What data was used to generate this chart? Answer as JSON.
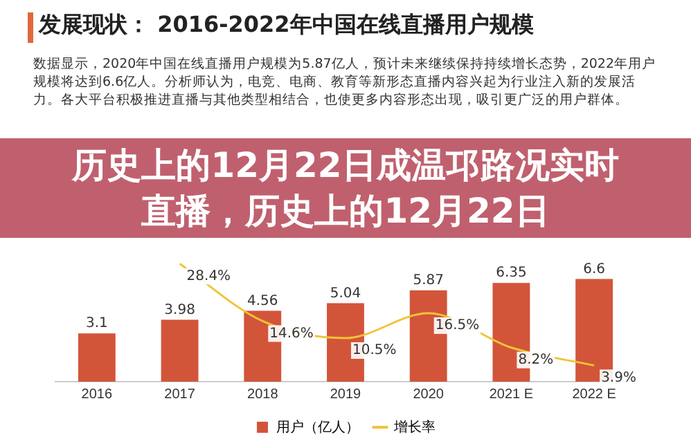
{
  "chart_data": {
    "type": "bar",
    "title": "发展现状： 2016-2022年中国在线直播用户规模",
    "subtitle": "数据显示，2020年中国在线直播用户规模为5.87亿人，预计未来继续保持持续增长态势，2022年用户规模将达到6.6亿人。分析师认为，电竞、电商、教育等新形态直播内容兴起为行业注入新的发展活力。各大平台积极推进直播与其他类型相结合，也使更多内容形态出现，吸引更广泛的用户群体。",
    "annotations": [
      "历史上的12月22日成温邛路况实时直播，历史上的12月22日"
    ],
    "categories": [
      "2016",
      "2017",
      "2018",
      "2019",
      "2020",
      "2021 E",
      "2022 E"
    ],
    "series": [
      {
        "name": "用户（亿人）",
        "color": "#d2553a",
        "values": [
          3.1,
          3.98,
          4.56,
          5.04,
          5.87,
          6.35,
          6.6
        ],
        "value_labels": [
          "3.1",
          "3.98",
          "4.56",
          "5.04",
          "5.87",
          "6.35",
          "6.6"
        ]
      },
      {
        "name": "增长率",
        "type": "line",
        "axis": "y2",
        "color": "#f0c437",
        "values": [
          null,
          28.4,
          14.6,
          10.5,
          16.5,
          8.2,
          3.9
        ],
        "value_labels": [
          null,
          "28.4%",
          "14.6%",
          "10.5%",
          "16.5%",
          "8.2%",
          "3.9%"
        ]
      }
    ],
    "legend": "bottom",
    "grid": false,
    "marker": "none"
  }
}
